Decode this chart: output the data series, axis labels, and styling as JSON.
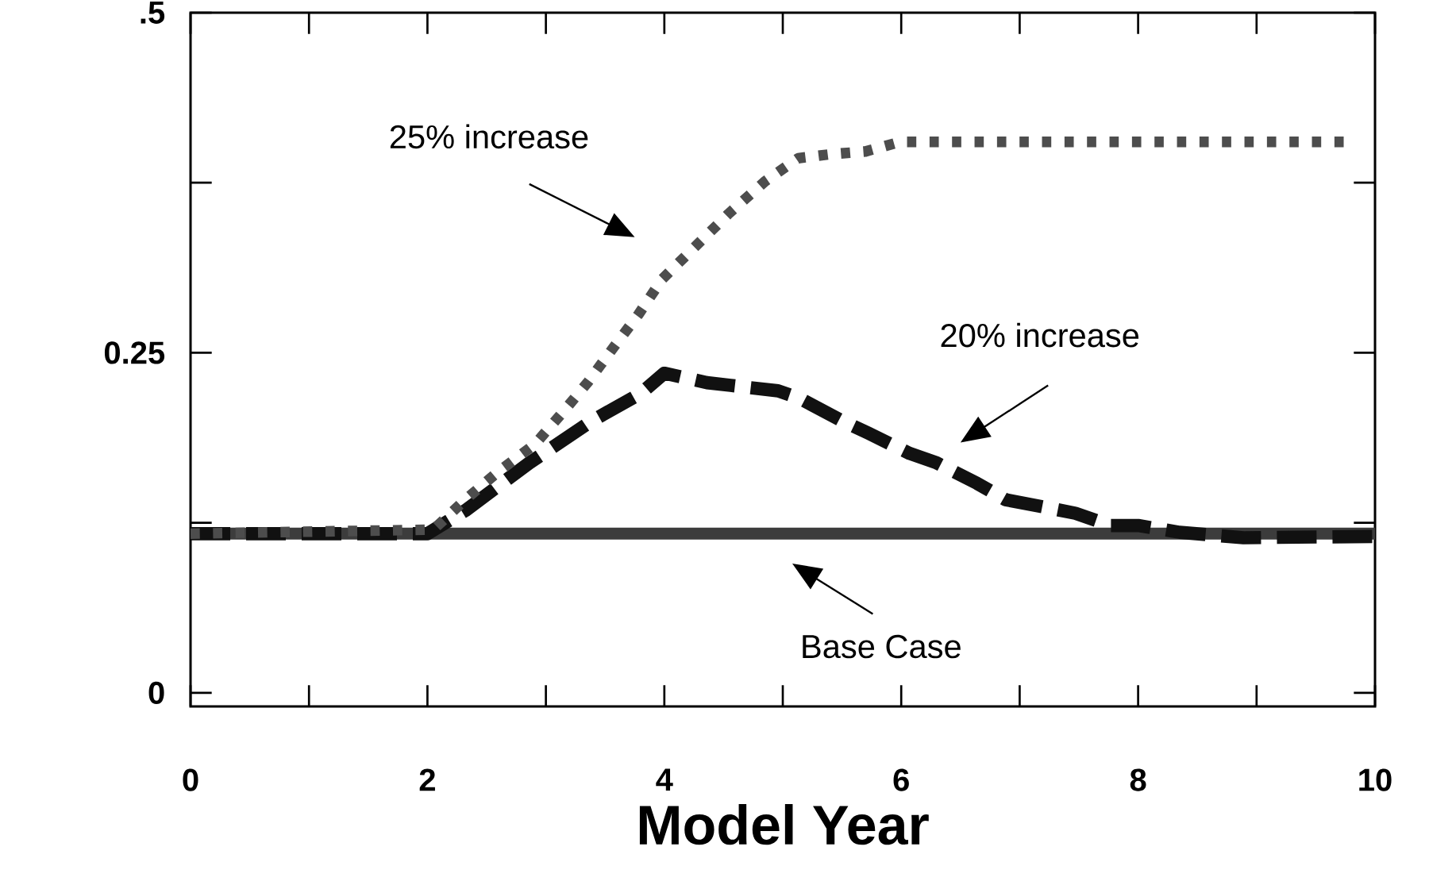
{
  "chart_data": {
    "type": "line",
    "xlabel": "Model Year",
    "xlim": [
      0,
      10
    ],
    "ylim": [
      -0.01,
      0.5
    ],
    "xticks": [
      0,
      {
        "value": 1,
        "label": null
      },
      2,
      {
        "value": 3,
        "label": null
      },
      4,
      {
        "value": 5,
        "label": null
      },
      6,
      {
        "value": 7,
        "label": null
      },
      8,
      {
        "value": 9,
        "label": null
      },
      10
    ],
    "yticks": [
      0,
      {
        "value": 0.125,
        "label": null
      },
      0.25,
      {
        "value": 0.375,
        "label": null
      },
      {
        "value": 0.5,
        "label": ".5"
      }
    ],
    "grid": false,
    "marker": "none",
    "series": [
      {
        "color": "#3c3c3c",
        "line_style": "solid",
        "x": [
          0,
          10
        ],
        "values": [
          0.117,
          0.117
        ]
      },
      {
        "color": "#111111",
        "line_style": "dashed",
        "x": [
          0,
          2,
          2.32,
          2.86,
          3.39,
          3.8,
          4.0,
          4.36,
          4.56,
          4.96,
          5.13,
          5.5,
          5.72,
          6.07,
          6.3,
          6.64,
          6.88,
          7.24,
          7.47,
          7.77,
          8.0,
          8.35,
          8.89,
          10
        ],
        "values": [
          0.117,
          0.117,
          0.134,
          0.169,
          0.2,
          0.22,
          0.235,
          0.228,
          0.226,
          0.222,
          0.217,
          0.2,
          0.191,
          0.176,
          0.169,
          0.154,
          0.142,
          0.136,
          0.132,
          0.123,
          0.123,
          0.118,
          0.114,
          0.115
        ]
      },
      {
        "color": "#4d4d4d",
        "line_style": "dotted",
        "x": [
          0,
          2.05,
          2.32,
          2.59,
          2.91,
          3.15,
          3.36,
          3.58,
          3.78,
          3.98,
          4.26,
          4.54,
          4.85,
          5.13,
          5.41,
          5.7,
          5.99,
          9.75
        ],
        "values": [
          0.117,
          0.12,
          0.142,
          0.162,
          0.183,
          0.207,
          0.229,
          0.255,
          0.278,
          0.304,
          0.328,
          0.352,
          0.376,
          0.393,
          0.396,
          0.398,
          0.405,
          0.405
        ]
      }
    ],
    "annotations": [
      "25%  increase",
      "20%  increase",
      "Base Case"
    ]
  }
}
